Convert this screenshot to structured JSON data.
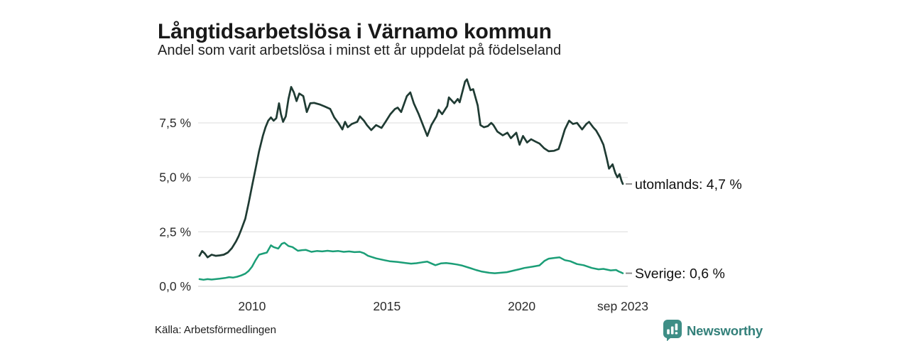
{
  "header": {
    "title": "Långtidsarbetslösa i Värnamo kommun",
    "subtitle": "Andel som varit arbetslösa i minst ett år uppdelat på födelseland"
  },
  "footer": {
    "source": "Källa: Arbetsförmedlingen",
    "brand": "Newsworthy",
    "brand_color": "#33807a",
    "brand_icon": "newsworthy-logo",
    "brand_icon_bg": "#3e8e86"
  },
  "chart_data": {
    "type": "line",
    "title": "Långtidsarbetslösa i Värnamo kommun",
    "subtitle": "Andel som varit arbetslösa i minst ett år uppdelat på födelseland",
    "xlabel": "",
    "ylabel": "",
    "unit": "%",
    "grid": "horizontal",
    "legend_position": "end-labels-right",
    "x_range": [
      2008,
      2023.75
    ],
    "y_range": [
      0,
      9.8
    ],
    "x_ticks": [
      {
        "x": 2010,
        "label": "2010"
      },
      {
        "x": 2015,
        "label": "2015"
      },
      {
        "x": 2020,
        "label": "2020"
      },
      {
        "x": 2023.75,
        "label": "sep 2023"
      }
    ],
    "y_ticks": [
      {
        "v": 0,
        "label": "0,0 %"
      },
      {
        "v": 2.5,
        "label": "2,5 %"
      },
      {
        "v": 5,
        "label": "5,0 %"
      },
      {
        "v": 7.5,
        "label": "7,5 %"
      }
    ],
    "series": [
      {
        "name": "utomlands",
        "end_label": "utomlands: 4,7 %",
        "last_value": "4,7 %",
        "color": "#1f3b33",
        "points": [
          [
            2008.05,
            1.4
          ],
          [
            2008.15,
            1.62
          ],
          [
            2008.25,
            1.5
          ],
          [
            2008.35,
            1.33
          ],
          [
            2008.5,
            1.45
          ],
          [
            2008.65,
            1.4
          ],
          [
            2008.8,
            1.42
          ],
          [
            2008.95,
            1.45
          ],
          [
            2009.1,
            1.55
          ],
          [
            2009.25,
            1.75
          ],
          [
            2009.4,
            2.05
          ],
          [
            2009.5,
            2.3
          ],
          [
            2009.6,
            2.6
          ],
          [
            2009.75,
            3.1
          ],
          [
            2009.87,
            3.8
          ],
          [
            2010.0,
            4.6
          ],
          [
            2010.13,
            5.4
          ],
          [
            2010.26,
            6.2
          ],
          [
            2010.4,
            6.9
          ],
          [
            2010.5,
            7.3
          ],
          [
            2010.6,
            7.6
          ],
          [
            2010.7,
            7.75
          ],
          [
            2010.8,
            7.6
          ],
          [
            2010.9,
            7.72
          ],
          [
            2011.0,
            8.4
          ],
          [
            2011.07,
            7.9
          ],
          [
            2011.15,
            7.55
          ],
          [
            2011.25,
            7.8
          ],
          [
            2011.35,
            8.6
          ],
          [
            2011.45,
            9.15
          ],
          [
            2011.55,
            8.9
          ],
          [
            2011.65,
            8.5
          ],
          [
            2011.75,
            8.85
          ],
          [
            2011.9,
            8.73
          ],
          [
            2012.03,
            8.0
          ],
          [
            2012.16,
            8.4
          ],
          [
            2012.3,
            8.42
          ],
          [
            2012.5,
            8.35
          ],
          [
            2012.7,
            8.25
          ],
          [
            2012.9,
            8.14
          ],
          [
            2013.05,
            7.75
          ],
          [
            2013.2,
            7.5
          ],
          [
            2013.35,
            7.2
          ],
          [
            2013.45,
            7.55
          ],
          [
            2013.55,
            7.3
          ],
          [
            2013.7,
            7.45
          ],
          [
            2013.9,
            7.55
          ],
          [
            2014.0,
            7.8
          ],
          [
            2014.15,
            7.6
          ],
          [
            2014.26,
            7.4
          ],
          [
            2014.42,
            7.17
          ],
          [
            2014.6,
            7.4
          ],
          [
            2014.8,
            7.27
          ],
          [
            2014.95,
            7.55
          ],
          [
            2015.13,
            7.9
          ],
          [
            2015.3,
            8.14
          ],
          [
            2015.4,
            8.2
          ],
          [
            2015.53,
            8.0
          ],
          [
            2015.74,
            8.73
          ],
          [
            2015.87,
            8.9
          ],
          [
            2016.0,
            8.4
          ],
          [
            2016.18,
            7.9
          ],
          [
            2016.37,
            7.3
          ],
          [
            2016.5,
            6.9
          ],
          [
            2016.65,
            7.4
          ],
          [
            2016.84,
            7.8
          ],
          [
            2016.92,
            8.1
          ],
          [
            2017.05,
            7.9
          ],
          [
            2017.24,
            8.27
          ],
          [
            2017.3,
            8.67
          ],
          [
            2017.5,
            8.4
          ],
          [
            2017.63,
            8.6
          ],
          [
            2017.7,
            8.45
          ],
          [
            2017.9,
            9.4
          ],
          [
            2017.97,
            9.5
          ],
          [
            2018.1,
            9.0
          ],
          [
            2018.2,
            9.05
          ],
          [
            2018.37,
            8.3
          ],
          [
            2018.47,
            7.4
          ],
          [
            2018.6,
            7.3
          ],
          [
            2018.74,
            7.35
          ],
          [
            2018.87,
            7.5
          ],
          [
            2018.95,
            7.4
          ],
          [
            2019.1,
            7.1
          ],
          [
            2019.3,
            6.93
          ],
          [
            2019.47,
            7.05
          ],
          [
            2019.6,
            6.8
          ],
          [
            2019.8,
            7.05
          ],
          [
            2019.92,
            6.5
          ],
          [
            2020.05,
            6.9
          ],
          [
            2020.2,
            6.6
          ],
          [
            2020.35,
            6.75
          ],
          [
            2020.5,
            6.65
          ],
          [
            2020.66,
            6.55
          ],
          [
            2020.84,
            6.33
          ],
          [
            2021.0,
            6.2
          ],
          [
            2021.2,
            6.22
          ],
          [
            2021.37,
            6.3
          ],
          [
            2021.45,
            6.6
          ],
          [
            2021.6,
            7.2
          ],
          [
            2021.76,
            7.6
          ],
          [
            2021.9,
            7.45
          ],
          [
            2022.05,
            7.5
          ],
          [
            2022.24,
            7.2
          ],
          [
            2022.4,
            7.45
          ],
          [
            2022.5,
            7.55
          ],
          [
            2022.65,
            7.3
          ],
          [
            2022.76,
            7.15
          ],
          [
            2022.9,
            6.85
          ],
          [
            2023.03,
            6.5
          ],
          [
            2023.15,
            5.9
          ],
          [
            2023.24,
            5.4
          ],
          [
            2023.37,
            5.6
          ],
          [
            2023.47,
            5.2
          ],
          [
            2023.55,
            5.0
          ],
          [
            2023.63,
            5.15
          ],
          [
            2023.7,
            4.85
          ],
          [
            2023.75,
            4.7
          ]
        ]
      },
      {
        "name": "Sverige",
        "end_label": "Sverige: 0,6 %",
        "last_value": "0,6 %",
        "color": "#1b9e77",
        "points": [
          [
            2008.05,
            0.33
          ],
          [
            2008.2,
            0.3
          ],
          [
            2008.35,
            0.33
          ],
          [
            2008.5,
            0.31
          ],
          [
            2008.65,
            0.33
          ],
          [
            2008.8,
            0.35
          ],
          [
            2009.0,
            0.38
          ],
          [
            2009.15,
            0.42
          ],
          [
            2009.3,
            0.4
          ],
          [
            2009.45,
            0.44
          ],
          [
            2009.6,
            0.5
          ],
          [
            2009.75,
            0.58
          ],
          [
            2009.87,
            0.7
          ],
          [
            2010.0,
            0.9
          ],
          [
            2010.13,
            1.2
          ],
          [
            2010.26,
            1.45
          ],
          [
            2010.4,
            1.5
          ],
          [
            2010.55,
            1.55
          ],
          [
            2010.7,
            1.88
          ],
          [
            2010.8,
            1.8
          ],
          [
            2010.97,
            1.73
          ],
          [
            2011.1,
            1.95
          ],
          [
            2011.2,
            2.0
          ],
          [
            2011.35,
            1.85
          ],
          [
            2011.5,
            1.8
          ],
          [
            2011.7,
            1.63
          ],
          [
            2011.85,
            1.66
          ],
          [
            2012.0,
            1.67
          ],
          [
            2012.2,
            1.58
          ],
          [
            2012.4,
            1.62
          ],
          [
            2012.6,
            1.6
          ],
          [
            2012.8,
            1.63
          ],
          [
            2013.0,
            1.6
          ],
          [
            2013.2,
            1.62
          ],
          [
            2013.4,
            1.58
          ],
          [
            2013.6,
            1.6
          ],
          [
            2013.8,
            1.57
          ],
          [
            2014.0,
            1.58
          ],
          [
            2014.15,
            1.52
          ],
          [
            2014.3,
            1.4
          ],
          [
            2014.6,
            1.28
          ],
          [
            2014.9,
            1.2
          ],
          [
            2015.1,
            1.15
          ],
          [
            2015.4,
            1.12
          ],
          [
            2015.7,
            1.07
          ],
          [
            2015.9,
            1.04
          ],
          [
            2016.1,
            1.06
          ],
          [
            2016.3,
            1.1
          ],
          [
            2016.5,
            1.13
          ],
          [
            2016.65,
            1.05
          ],
          [
            2016.8,
            0.97
          ],
          [
            2017.0,
            1.05
          ],
          [
            2017.2,
            1.07
          ],
          [
            2017.4,
            1.04
          ],
          [
            2017.6,
            1.0
          ],
          [
            2017.8,
            0.95
          ],
          [
            2018.1,
            0.83
          ],
          [
            2018.3,
            0.75
          ],
          [
            2018.5,
            0.68
          ],
          [
            2018.8,
            0.62
          ],
          [
            2019.0,
            0.6
          ],
          [
            2019.2,
            0.62
          ],
          [
            2019.45,
            0.65
          ],
          [
            2019.7,
            0.72
          ],
          [
            2019.9,
            0.78
          ],
          [
            2020.1,
            0.84
          ],
          [
            2020.4,
            0.9
          ],
          [
            2020.66,
            0.96
          ],
          [
            2020.85,
            1.17
          ],
          [
            2021.0,
            1.27
          ],
          [
            2021.2,
            1.3
          ],
          [
            2021.4,
            1.33
          ],
          [
            2021.6,
            1.2
          ],
          [
            2021.8,
            1.15
          ],
          [
            2022.05,
            1.02
          ],
          [
            2022.3,
            0.97
          ],
          [
            2022.6,
            0.84
          ],
          [
            2022.85,
            0.78
          ],
          [
            2023.03,
            0.8
          ],
          [
            2023.3,
            0.73
          ],
          [
            2023.5,
            0.75
          ],
          [
            2023.6,
            0.68
          ],
          [
            2023.7,
            0.63
          ],
          [
            2023.75,
            0.6
          ]
        ]
      }
    ]
  }
}
